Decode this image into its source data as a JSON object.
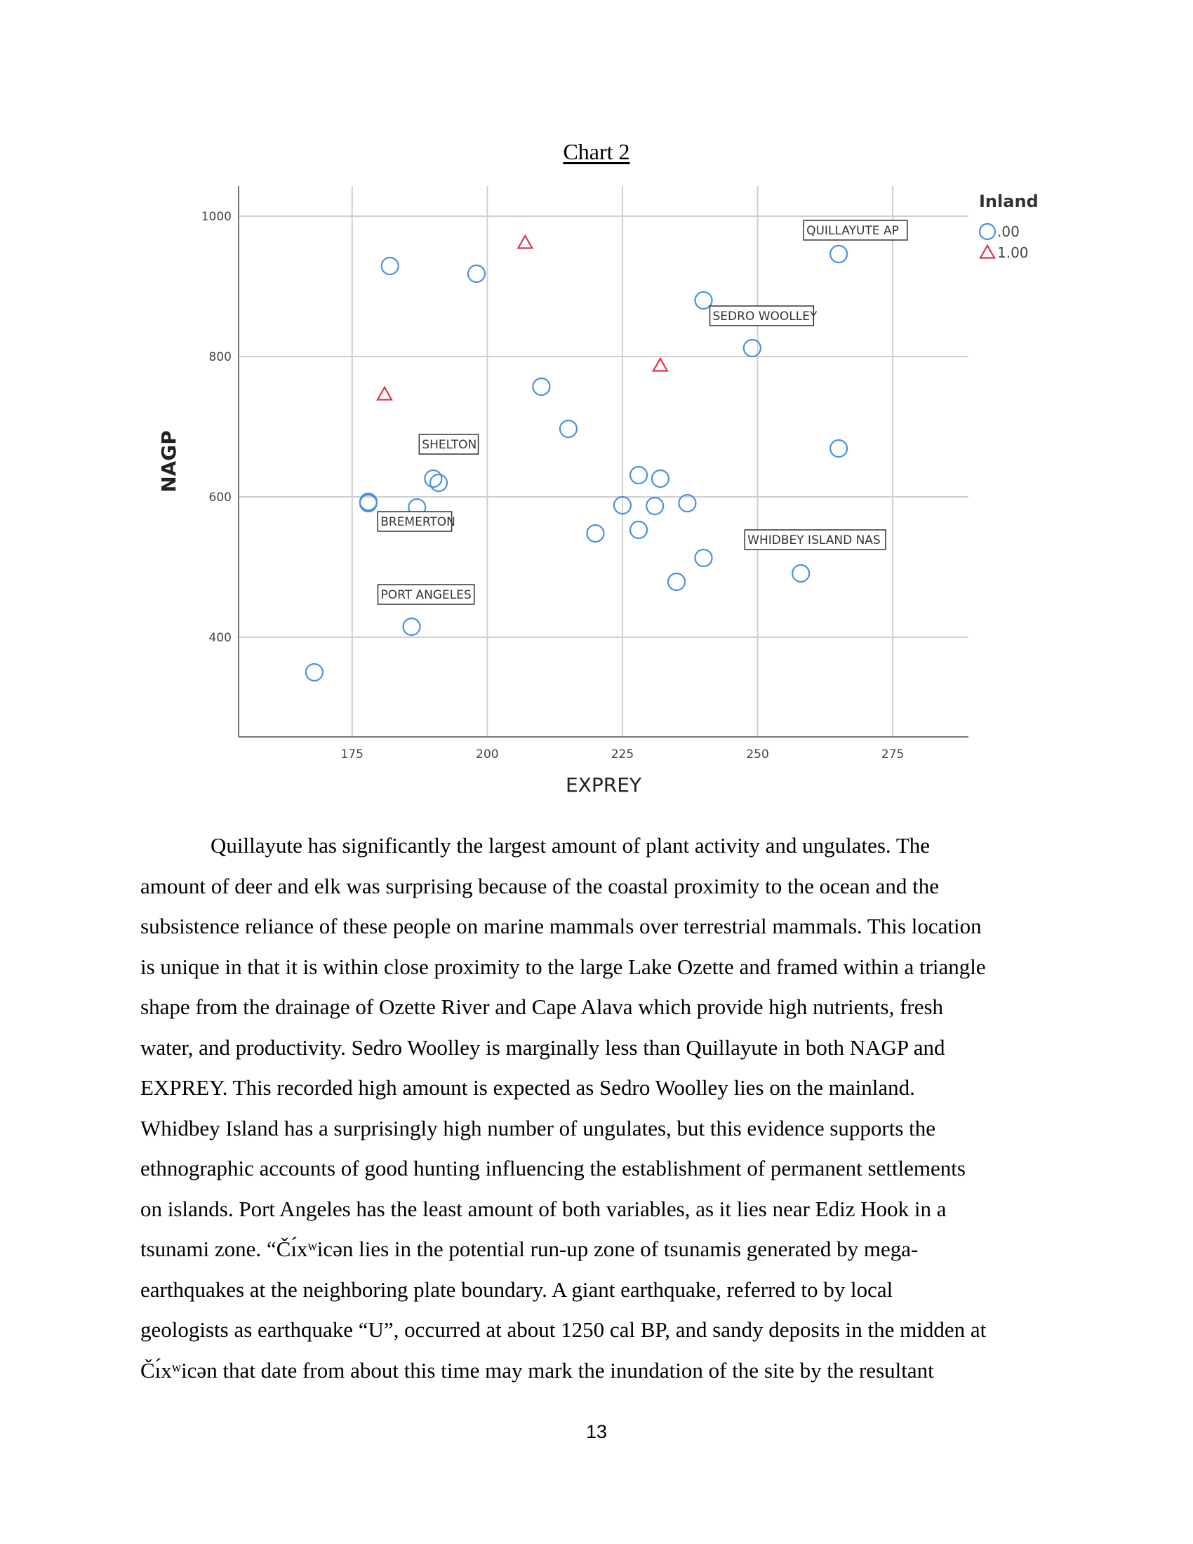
{
  "chart_title": "Chart 2",
  "chart_data": {
    "type": "scatter",
    "xlabel": "EXPREY",
    "ylabel": "NAGP",
    "xlim": [
      154,
      289
    ],
    "ylim": [
      258,
      1043
    ],
    "xticks": [
      175,
      200,
      225,
      250,
      275
    ],
    "yticks": [
      400,
      600,
      800,
      1000
    ],
    "grid": true,
    "legend": {
      "title": "Inland",
      "position": "top-right"
    },
    "colors": {
      "series0": "#4a90e2",
      "series1": "#e0324b"
    },
    "series": [
      {
        "name": ".00",
        "marker": "circle",
        "points": [
          {
            "x": 168,
            "y": 350
          },
          {
            "x": 178,
            "y": 593
          },
          {
            "x": 178,
            "y": 591
          },
          {
            "x": 182,
            "y": 929
          },
          {
            "x": 186,
            "y": 415
          },
          {
            "x": 187,
            "y": 585
          },
          {
            "x": 190,
            "y": 626
          },
          {
            "x": 191,
            "y": 620
          },
          {
            "x": 198,
            "y": 918
          },
          {
            "x": 210,
            "y": 757
          },
          {
            "x": 215,
            "y": 697
          },
          {
            "x": 220,
            "y": 548
          },
          {
            "x": 225,
            "y": 588
          },
          {
            "x": 228,
            "y": 553
          },
          {
            "x": 228,
            "y": 631
          },
          {
            "x": 231,
            "y": 587
          },
          {
            "x": 232,
            "y": 626
          },
          {
            "x": 235,
            "y": 479
          },
          {
            "x": 237,
            "y": 591
          },
          {
            "x": 240,
            "y": 880
          },
          {
            "x": 240,
            "y": 513
          },
          {
            "x": 249,
            "y": 812
          },
          {
            "x": 258,
            "y": 491
          },
          {
            "x": 265,
            "y": 946
          },
          {
            "x": 265,
            "y": 669
          }
        ]
      },
      {
        "name": "1.00",
        "marker": "triangle",
        "points": [
          {
            "x": 207,
            "y": 962
          },
          {
            "x": 181,
            "y": 746
          },
          {
            "x": 232,
            "y": 787
          }
        ]
      }
    ],
    "annotations": [
      {
        "text": "QUILLAYUTE AP",
        "x": 265,
        "y": 946
      },
      {
        "text": "SEDRO WOOLLEY",
        "x": 240,
        "y": 880
      },
      {
        "text": "SHELTON",
        "x": 190,
        "y": 626
      },
      {
        "text": "BREMERTON",
        "x": 187,
        "y": 585
      },
      {
        "text": "WHIDBEY ISLAND NAS",
        "x": 258,
        "y": 491
      },
      {
        "text": "PORT ANGELES",
        "x": 186,
        "y": 415
      }
    ]
  },
  "body_lines": [
    "Quillayute has significantly the largest amount of plant activity and ungulates. The",
    "amount of deer and elk was surprising because of the coastal proximity to the ocean and the",
    "subsistence reliance of these people on marine mammals over terrestrial mammals. This location",
    "is unique in that it is within close proximity to the large Lake Ozette and framed within a triangle",
    "shape from the drainage of Ozette River and Cape Alava which provide high nutrients, fresh",
    "water, and productivity. Sedro Woolley is marginally less than Quillayute in both NAGP and",
    "EXPREY. This recorded high amount is expected as Sedro Woolley lies on the mainland.",
    "Whidbey Island has a surprisingly high number of ungulates, but this evidence supports the",
    "ethnographic accounts of good hunting influencing the establishment of permanent settlements",
    "on islands. Port Angeles has the least amount of both variables, as it lies near Ediz Hook in a",
    "tsunami zone. “Čı́xʷicən lies in the potential run-up zone of tsunamis generated by mega-",
    "earthquakes at the neighboring plate boundary. A giant earthquake, referred to by local",
    "geologists as earthquake “U”, occurred at about 1250 cal BP, and sandy deposits in the midden at",
    "Čı́xʷicən that date from about this time may mark the inundation of the site by the resultant"
  ],
  "page_number": "13"
}
